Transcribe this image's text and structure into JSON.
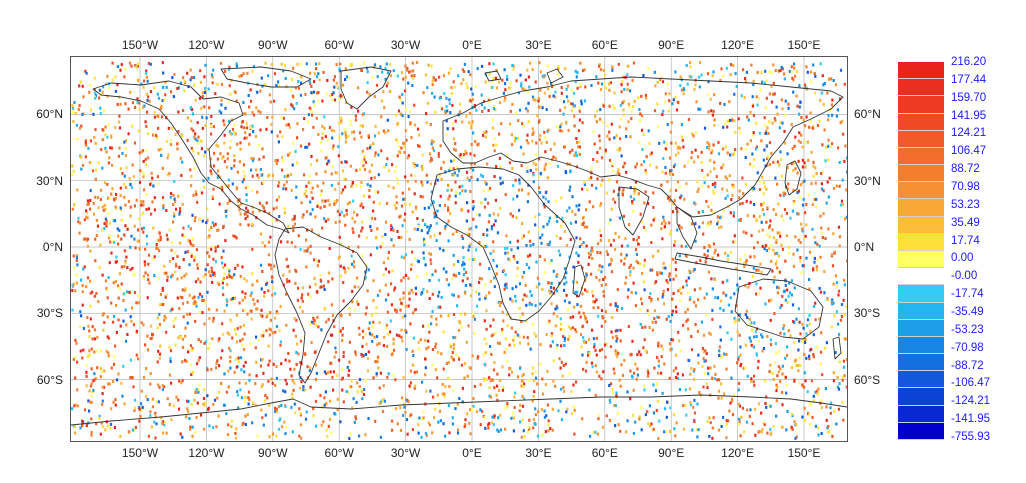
{
  "map": {
    "longitude_labels": [
      "150°W",
      "120°W",
      "90°W",
      "60°W",
      "30°W",
      "0°E",
      "30°E",
      "60°E",
      "90°E",
      "120°E",
      "150°E"
    ],
    "latitude_labels": [
      "60°N",
      "30°N",
      "0°N",
      "30°S",
      "60°S"
    ],
    "grid": true,
    "background": "#ffffff",
    "coastline_color": "#333333"
  },
  "colorbar": {
    "labels": [
      "216.20",
      "177.44",
      "159.70",
      "141.95",
      "124.21",
      "106.47",
      "88.72",
      "70.98",
      "53.23",
      "35.49",
      "17.74",
      "0.00",
      "-0.00",
      "-17.74",
      "-35.49",
      "-53.23",
      "-70.98",
      "-88.72",
      "-106.47",
      "-124.21",
      "-141.95",
      "-755.93"
    ],
    "colors": [
      "#e8241c",
      "#ea2e1f",
      "#ec3b22",
      "#ee4b25",
      "#f05c28",
      "#f26d2b",
      "#f47e2e",
      "#f69032",
      "#f9a735",
      "#fbbd38",
      "#fde138",
      "#ffff66",
      "#ffffff",
      "#33ccf5",
      "#22b5ef",
      "#1c9ee9",
      "#1887e3",
      "#1470df",
      "#1059da",
      "#0c42d6",
      "#0829d2",
      "#0000cc"
    ],
    "label_color": "#1a1aff"
  }
}
